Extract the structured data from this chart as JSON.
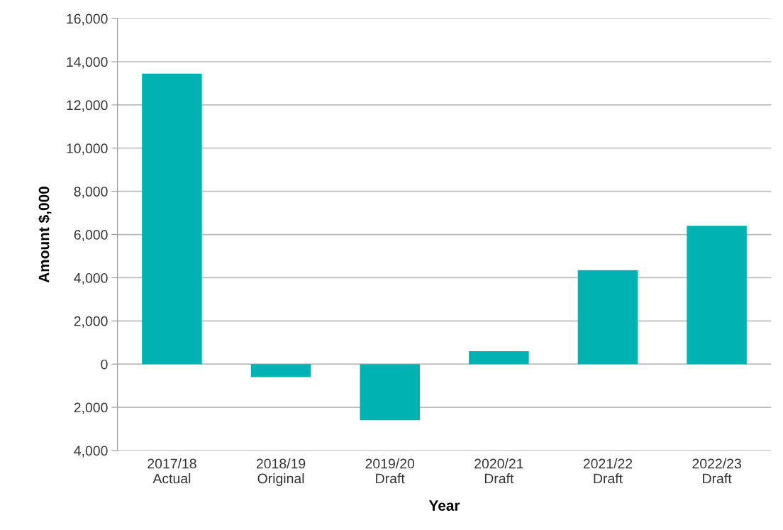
{
  "chart_data": {
    "type": "bar",
    "xlabel": "Year",
    "ylabel": "Amount $,000",
    "categories": [
      "2017/18\nActual",
      "2018/19\nOriginal",
      "2019/20\nDraft",
      "2020/21\nDraft",
      "2021/22\nDraft",
      "2022/23\nDraft"
    ],
    "values": [
      13450,
      -600,
      -2600,
      600,
      4350,
      6400
    ],
    "color": "#00b3b3",
    "ylim": [
      -4000,
      16000
    ],
    "yticks": [
      {
        "value": -4000,
        "label": "4,000"
      },
      {
        "value": -2000,
        "label": "2,000"
      },
      {
        "value": 0,
        "label": "0"
      },
      {
        "value": 2000,
        "label": "2,000"
      },
      {
        "value": 4000,
        "label": "4,000"
      },
      {
        "value": 6000,
        "label": "6,000"
      },
      {
        "value": 8000,
        "label": "8,000"
      },
      {
        "value": 10000,
        "label": "10,000"
      },
      {
        "value": 12000,
        "label": "12,000"
      },
      {
        "value": 14000,
        "label": "14,000"
      },
      {
        "value": 16000,
        "label": "16,000"
      }
    ],
    "grid": "y"
  }
}
